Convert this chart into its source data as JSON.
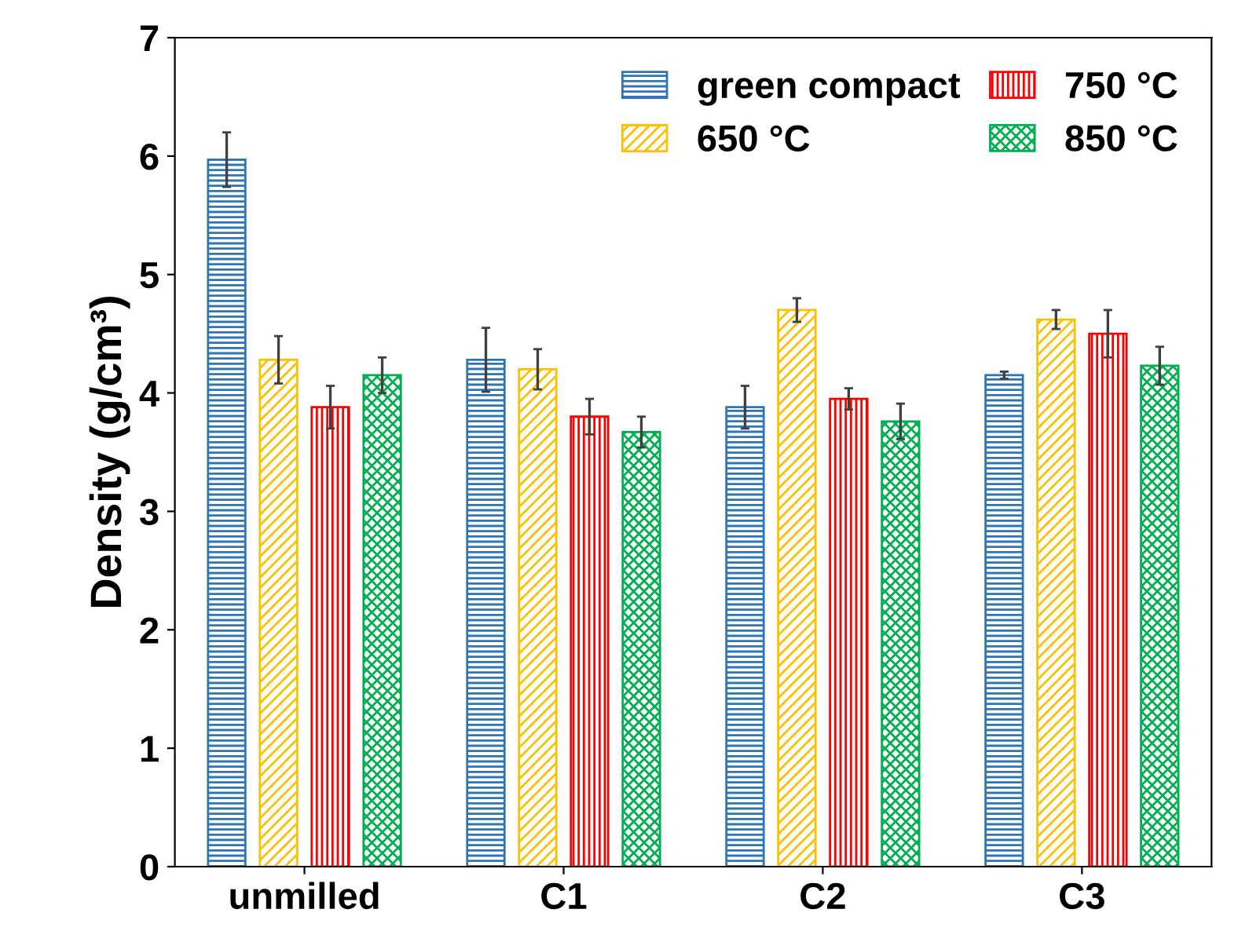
{
  "chart_data": {
    "type": "bar",
    "ylabel": "Density (g/cm³)",
    "categories": [
      "unmilled",
      "C1",
      "C2",
      "C3"
    ],
    "series": [
      {
        "name": "green compact",
        "color": "#2e75b6",
        "values": [
          5.97,
          4.28,
          3.88,
          4.15
        ],
        "errors": [
          0.23,
          0.27,
          0.18,
          0.03
        ]
      },
      {
        "name": "650 °C",
        "color": "#ffc000",
        "values": [
          4.28,
          4.2,
          4.7,
          4.62
        ],
        "errors": [
          0.2,
          0.17,
          0.1,
          0.08
        ]
      },
      {
        "name": "750 °C",
        "color": "#ff0000",
        "values": [
          3.88,
          3.8,
          3.95,
          4.5
        ],
        "errors": [
          0.18,
          0.15,
          0.09,
          0.2
        ]
      },
      {
        "name": "850 °C",
        "color": "#00b050",
        "values": [
          4.15,
          3.67,
          3.76,
          4.23
        ],
        "errors": [
          0.15,
          0.13,
          0.15,
          0.16
        ]
      }
    ],
    "ylim": [
      0,
      7
    ],
    "yticks": [
      0,
      1,
      2,
      3,
      4,
      5,
      6,
      7
    ],
    "grid": false,
    "legend": "top right"
  }
}
